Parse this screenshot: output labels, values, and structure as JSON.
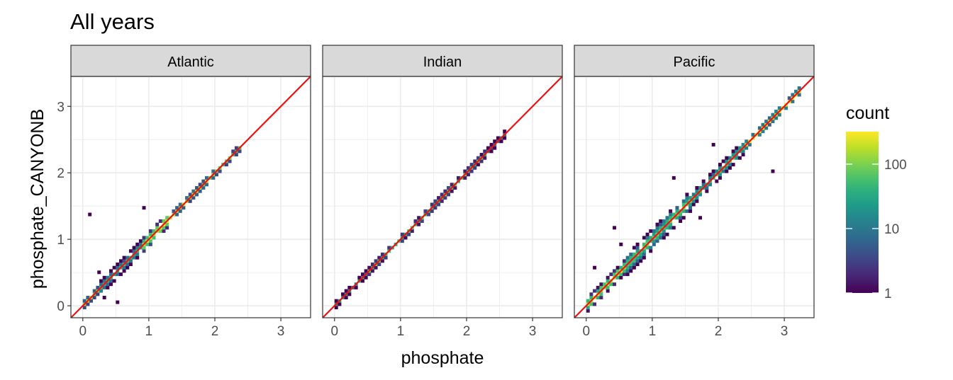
{
  "chart_data": {
    "type": "heatmap",
    "title": "All years",
    "xlabel": "phosphate",
    "ylabel": "phosphate_CANYONB",
    "facets": [
      "Atlantic",
      "Indian",
      "Pacific"
    ],
    "xlim": [
      -0.18,
      3.45
    ],
    "ylim": [
      -0.18,
      3.45
    ],
    "x_ticks": [
      0,
      1,
      2,
      3
    ],
    "y_ticks": [
      0,
      1,
      2,
      3
    ],
    "grid": true,
    "reference_line": {
      "slope": 1,
      "intercept": 0,
      "color": "#ee1111"
    },
    "legend": {
      "title": "count",
      "scale": "log10",
      "range": [
        1,
        320
      ],
      "ticks": [
        1,
        10,
        100
      ],
      "tick_labels": [
        "1",
        "10",
        "100"
      ],
      "palette": "viridis",
      "placement": "right"
    },
    "series": [
      {
        "facet": "Atlantic",
        "density_band": [
          {
            "x_min": 0.0,
            "x_max": 0.25,
            "spread": 0.05,
            "peak_count": 120
          },
          {
            "x_min": 0.25,
            "x_max": 0.9,
            "spread": 0.12,
            "peak_count": 40
          },
          {
            "x_min": 0.9,
            "x_max": 1.3,
            "spread": 0.1,
            "peak_count": 300
          },
          {
            "x_min": 1.3,
            "x_max": 2.0,
            "spread": 0.06,
            "peak_count": 150
          },
          {
            "x_min": 2.0,
            "x_max": 2.4,
            "spread": 0.07,
            "peak_count": 80
          }
        ],
        "outliers": [
          [
            0.08,
            1.35
          ],
          [
            0.9,
            1.45
          ],
          [
            0.5,
            0.03
          ],
          [
            0.3,
            0.1
          ],
          [
            0.22,
            0.48
          ]
        ]
      },
      {
        "facet": "Indian",
        "density_band": [
          {
            "x_min": 0.0,
            "x_max": 0.5,
            "spread": 0.04,
            "peak_count": 20
          },
          {
            "x_min": 0.5,
            "x_max": 2.3,
            "spread": 0.02,
            "peak_count": 60
          },
          {
            "x_min": 2.3,
            "x_max": 2.6,
            "spread": 0.04,
            "peak_count": 12
          }
        ],
        "outliers": []
      },
      {
        "facet": "Pacific",
        "density_band": [
          {
            "x_min": 0.0,
            "x_max": 0.6,
            "spread": 0.08,
            "peak_count": 200
          },
          {
            "x_min": 0.6,
            "x_max": 1.6,
            "spread": 0.15,
            "peak_count": 100
          },
          {
            "x_min": 1.6,
            "x_max": 2.4,
            "spread": 0.1,
            "peak_count": 60
          },
          {
            "x_min": 2.4,
            "x_max": 3.25,
            "spread": 0.05,
            "peak_count": 250
          }
        ],
        "outliers": [
          [
            1.7,
            1.3
          ],
          [
            1.3,
            1.9
          ],
          [
            1.9,
            2.4
          ],
          [
            2.8,
            2.0
          ],
          [
            0.1,
            0.55
          ],
          [
            0.5,
            0.9
          ],
          [
            2.1,
            2.2
          ],
          [
            0.4,
            1.15
          ]
        ]
      }
    ]
  }
}
